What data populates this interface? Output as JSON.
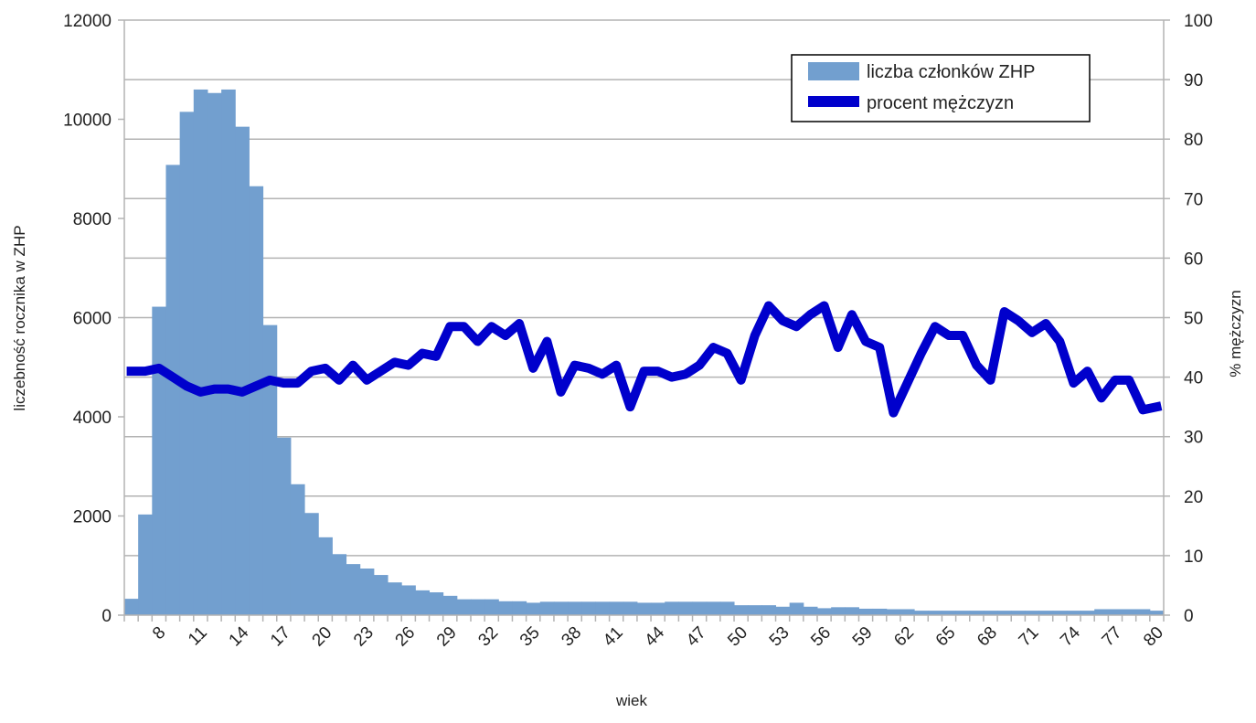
{
  "chart_data": {
    "type": "bar+line",
    "title": "",
    "xlabel": "wiek",
    "ylabel": "liczebność rocznika w ZHP",
    "y2label": "% mężczyzn",
    "ylim": [
      0,
      12000
    ],
    "y2lim": [
      0,
      100
    ],
    "yticks": [
      0,
      2000,
      4000,
      6000,
      8000,
      10000,
      12000
    ],
    "y2ticks": [
      0,
      10,
      20,
      30,
      40,
      50,
      60,
      70,
      80,
      90,
      100
    ],
    "grid": true,
    "legend_position": "top-right",
    "x_start": 6,
    "x_tick_labels": [
      "8",
      "11",
      "14",
      "17",
      "20",
      "23",
      "26",
      "29",
      "32",
      "35",
      "38",
      "41",
      "44",
      "47",
      "50",
      "53",
      "56",
      "59",
      "62",
      "65",
      "68",
      "71",
      "74",
      "77",
      "80"
    ],
    "series": [
      {
        "name": "liczba członków ZHP",
        "type": "bar",
        "color": "#729fcf",
        "axis": "left",
        "values": [
          330,
          2030,
          6220,
          9080,
          10150,
          10600,
          10530,
          10600,
          9850,
          8650,
          5850,
          3580,
          2640,
          2060,
          1570,
          1230,
          1030,
          940,
          810,
          660,
          600,
          500,
          460,
          390,
          320,
          320,
          320,
          280,
          280,
          250,
          270,
          270,
          270,
          270,
          270,
          270,
          270,
          250,
          250,
          270,
          270,
          270,
          270,
          270,
          200,
          200,
          200,
          170,
          250,
          170,
          140,
          160,
          160,
          130,
          130,
          120,
          120,
          90,
          90,
          90,
          90,
          90,
          90,
          90,
          90,
          90,
          90,
          90,
          90,
          90,
          120,
          120,
          120,
          120,
          90
        ]
      },
      {
        "name": "procent mężczyzn",
        "type": "line",
        "color": "#0000cc",
        "axis": "right",
        "values": [
          41,
          41,
          41.5,
          40,
          38.5,
          37.5,
          38,
          38,
          37.5,
          38.5,
          39.5,
          39,
          39,
          41,
          41.5,
          39.5,
          42,
          39.5,
          41,
          42.5,
          42,
          44,
          43.5,
          48.5,
          48.5,
          46,
          48.5,
          47,
          49,
          41.5,
          46,
          37.5,
          42,
          41.5,
          40.5,
          42,
          35,
          41,
          41,
          40,
          40.5,
          42,
          45,
          44,
          39.5,
          47,
          52,
          49.5,
          48.5,
          50.5,
          52,
          45,
          50.5,
          46,
          45,
          34,
          39,
          44,
          48.5,
          47,
          47,
          42,
          39.5,
          51,
          49.5,
          47.5,
          49,
          46,
          39,
          41,
          36.5,
          39.5,
          39.5,
          34.5,
          35
        ]
      }
    ]
  }
}
